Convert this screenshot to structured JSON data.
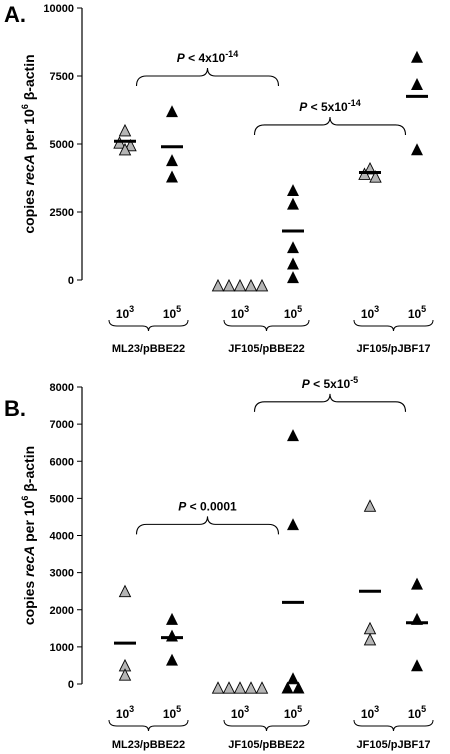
{
  "chart_data": [
    {
      "panel": "A.",
      "type": "scatter",
      "ylabel_parts": [
        "copies ",
        "recA",
        " per 10",
        "6",
        " β-actin"
      ],
      "ylim": [
        0,
        10000
      ],
      "yticks": [
        0,
        2500,
        5000,
        7500,
        10000
      ],
      "yticklabels": [
        "0",
        "2500",
        "5000",
        "7500",
        "10000"
      ],
      "doses": [
        {
          "base": "10",
          "exp": "3"
        },
        {
          "base": "10",
          "exp": "5"
        },
        {
          "base": "10",
          "exp": "3"
        },
        {
          "base": "10",
          "exp": "5"
        },
        {
          "base": "10",
          "exp": "3"
        },
        {
          "base": "10",
          "exp": "5"
        }
      ],
      "groups": [
        "ML23/pBBE22",
        "JF105/pBBE22",
        "JF105/pJBF17"
      ],
      "series": [
        {
          "color": "#b5b5b5",
          "points": [
            [
              1,
              5500
            ],
            [
              1,
              4800
            ],
            [
              1,
              5050
            ],
            [
              1,
              4950
            ]
          ]
        },
        {
          "color": "#000000",
          "points": [
            [
              2,
              6200
            ],
            [
              2,
              4400
            ],
            [
              2,
              3800
            ]
          ]
        },
        {
          "color": "#b5b5b5",
          "points": [
            [
              3,
              -200
            ],
            [
              3,
              -200
            ],
            [
              3,
              -200
            ],
            [
              3,
              -200
            ],
            [
              3,
              -200
            ]
          ]
        },
        {
          "color": "#000000",
          "points": [
            [
              4,
              3300
            ],
            [
              4,
              2800
            ],
            [
              4,
              1200
            ],
            [
              4,
              600
            ],
            [
              4,
              100
            ]
          ]
        },
        {
          "color": "#b5b5b5",
          "points": [
            [
              5,
              3900
            ],
            [
              5,
              4100
            ],
            [
              5,
              3800
            ]
          ]
        },
        {
          "color": "#000000",
          "points": [
            [
              6,
              8200
            ],
            [
              6,
              7200
            ],
            [
              6,
              4800
            ]
          ]
        }
      ],
      "means": [
        {
          "x": 1,
          "y": 5100
        },
        {
          "x": 2,
          "y": 4900
        },
        {
          "x": 4,
          "y": 1800
        },
        {
          "x": 5,
          "y": 3950
        },
        {
          "x": 6,
          "y": 6750
        }
      ],
      "annotations": [
        {
          "prefix": "P",
          "text": " < 4x10",
          "sup": "-14",
          "from": 1.5,
          "to": 3.5,
          "y": 7500
        },
        {
          "prefix": "P",
          "text": " < 5x10",
          "sup": "-14",
          "from": 3.5,
          "to": 5.5,
          "y": 5700
        }
      ]
    },
    {
      "panel": "B.",
      "type": "scatter",
      "ylabel_parts": [
        "copies ",
        "recA",
        " per 10",
        "6",
        " β-actin"
      ],
      "ylim": [
        0,
        8000
      ],
      "yticks": [
        0,
        1000,
        2000,
        3000,
        4000,
        5000,
        6000,
        7000,
        8000
      ],
      "yticklabels": [
        "0",
        "1000",
        "2000",
        "3000",
        "4000",
        "5000",
        "6000",
        "7000",
        "8000"
      ],
      "doses": [
        {
          "base": "10",
          "exp": "3"
        },
        {
          "base": "10",
          "exp": "5"
        },
        {
          "base": "10",
          "exp": "3"
        },
        {
          "base": "10",
          "exp": "5"
        },
        {
          "base": "10",
          "exp": "3"
        },
        {
          "base": "10",
          "exp": "5"
        }
      ],
      "groups": [
        "ML23/pBBE22",
        "JF105/pBBE22",
        "JF105/pJBF17"
      ],
      "series": [
        {
          "color": "#b5b5b5",
          "points": [
            [
              1,
              2500
            ],
            [
              1,
              500
            ],
            [
              1,
              250
            ]
          ]
        },
        {
          "color": "#000000",
          "points": [
            [
              2,
              1750
            ],
            [
              2,
              1300
            ],
            [
              2,
              650
            ]
          ]
        },
        {
          "color": "#b5b5b5",
          "points": [
            [
              3,
              -100
            ],
            [
              3,
              -100
            ],
            [
              3,
              -100
            ],
            [
              3,
              -100
            ],
            [
              3,
              -100
            ]
          ]
        },
        {
          "color": "#000000",
          "points": [
            [
              4,
              6700
            ],
            [
              4,
              4300
            ],
            [
              4,
              150
            ],
            [
              4,
              -100
            ],
            [
              4,
              -100
            ]
          ]
        },
        {
          "color": "#b5b5b5",
          "points": [
            [
              5,
              4800
            ],
            [
              5,
              1500
            ],
            [
              5,
              1200
            ]
          ]
        },
        {
          "color": "#000000",
          "points": [
            [
              6,
              2700
            ],
            [
              6,
              1750
            ],
            [
              6,
              500
            ]
          ]
        }
      ],
      "means": [
        {
          "x": 1,
          "y": 1100
        },
        {
          "x": 2,
          "y": 1250
        },
        {
          "x": 4,
          "y": 2200
        },
        {
          "x": 5,
          "y": 2500
        },
        {
          "x": 6,
          "y": 1650
        }
      ],
      "annotations": [
        {
          "prefix": "P",
          "text": " < 0.0001",
          "sup": "",
          "from": 1.5,
          "to": 3.5,
          "y": 4300
        },
        {
          "prefix": "P",
          "text": " < 5x10",
          "sup": "-5",
          "from": 3.5,
          "to": 5.5,
          "y": 7600
        }
      ]
    }
  ]
}
